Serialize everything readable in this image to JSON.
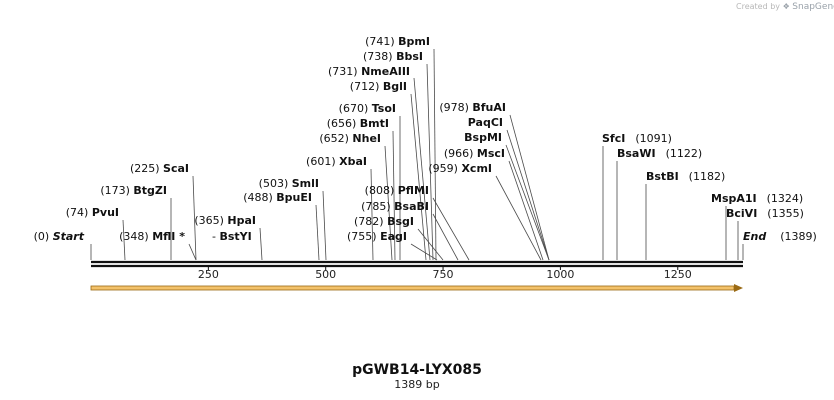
{
  "credit": {
    "prefix": "Created by",
    "brand": "SnapGene"
  },
  "plasmid": {
    "name": "pGWB14-LYX085",
    "length_label": "1389 bp",
    "length": 1389
  },
  "ruler": {
    "ticks": [
      250,
      500,
      750,
      1000,
      1250
    ]
  },
  "ends": [
    {
      "pos": 0,
      "pos_label": "(0)",
      "name": "Start",
      "side": "left"
    },
    {
      "pos": 1389,
      "pos_label": "(1389)",
      "name": "End",
      "side": "right"
    }
  ],
  "sites": [
    {
      "name": "BpmI",
      "pos": 741,
      "pos_label": "(741)",
      "side": "left"
    },
    {
      "name": "BbsI",
      "pos": 738,
      "pos_label": "(738)",
      "side": "left"
    },
    {
      "name": "NmeAIII",
      "pos": 731,
      "pos_label": "(731)",
      "side": "left"
    },
    {
      "name": "BglI",
      "pos": 712,
      "pos_label": "(712)",
      "side": "left"
    },
    {
      "name": "TsoI",
      "pos": 670,
      "pos_label": "(670)",
      "side": "left"
    },
    {
      "name": "BmtI",
      "pos": 656,
      "pos_label": "(656)",
      "side": "left"
    },
    {
      "name": "NheI",
      "pos": 652,
      "pos_label": "(652)",
      "side": "left"
    },
    {
      "name": "XbaI",
      "pos": 601,
      "pos_label": "(601)",
      "side": "left"
    },
    {
      "name": "ScaI",
      "pos": 225,
      "pos_label": "(225)",
      "side": "left"
    },
    {
      "name": "BtgZI",
      "pos": 173,
      "pos_label": "(173)",
      "side": "left"
    },
    {
      "name": "PvuI",
      "pos": 74,
      "pos_label": "(74)",
      "side": "left"
    },
    {
      "name": "MflI",
      "pos": 348,
      "pos_label": "(348)",
      "side": "left",
      "marker": "*"
    },
    {
      "name": "HpaI",
      "pos": 365,
      "pos_label": "(365)",
      "side": "left"
    },
    {
      "name": "BstYI",
      "pos": 348,
      "pos_label": "",
      "side": "right",
      "prefix": "-"
    },
    {
      "name": "SmlI",
      "pos": 503,
      "pos_label": "(503)",
      "side": "left"
    },
    {
      "name": "BpuEI",
      "pos": 488,
      "pos_label": "(488)",
      "side": "left"
    },
    {
      "name": "PflMI",
      "pos": 808,
      "pos_label": "(808)",
      "side": "left"
    },
    {
      "name": "BsaBI",
      "pos": 785,
      "pos_label": "(785)",
      "side": "left"
    },
    {
      "name": "BsgI",
      "pos": 782,
      "pos_label": "(782)",
      "side": "left"
    },
    {
      "name": "EagI",
      "pos": 755,
      "pos_label": "(755)",
      "side": "left"
    },
    {
      "name": "BfuAI",
      "pos": 978,
      "pos_label": "(978)",
      "side": "left"
    },
    {
      "name": "PaqCI",
      "pos": 978,
      "pos_label": "",
      "side": "left"
    },
    {
      "name": "BspMI",
      "pos": 978,
      "pos_label": "",
      "side": "left"
    },
    {
      "name": "MscI",
      "pos": 966,
      "pos_label": "(966)",
      "side": "left"
    },
    {
      "name": "XcmI",
      "pos": 959,
      "pos_label": "(959)",
      "side": "left"
    },
    {
      "name": "SfcI",
      "pos": 1091,
      "pos_label": "(1091)",
      "side": "right"
    },
    {
      "name": "BsaWI",
      "pos": 1122,
      "pos_label": "(1122)",
      "side": "right"
    },
    {
      "name": "BstBI",
      "pos": 1182,
      "pos_label": "(1182)",
      "side": "right"
    },
    {
      "name": "MspA1I",
      "pos": 1324,
      "pos_label": "(1324)",
      "side": "right"
    },
    {
      "name": "BciVI",
      "pos": 1355,
      "pos_label": "(1355)",
      "side": "right"
    }
  ],
  "feature": {
    "color": "#f3c26a",
    "direction": "forward"
  }
}
